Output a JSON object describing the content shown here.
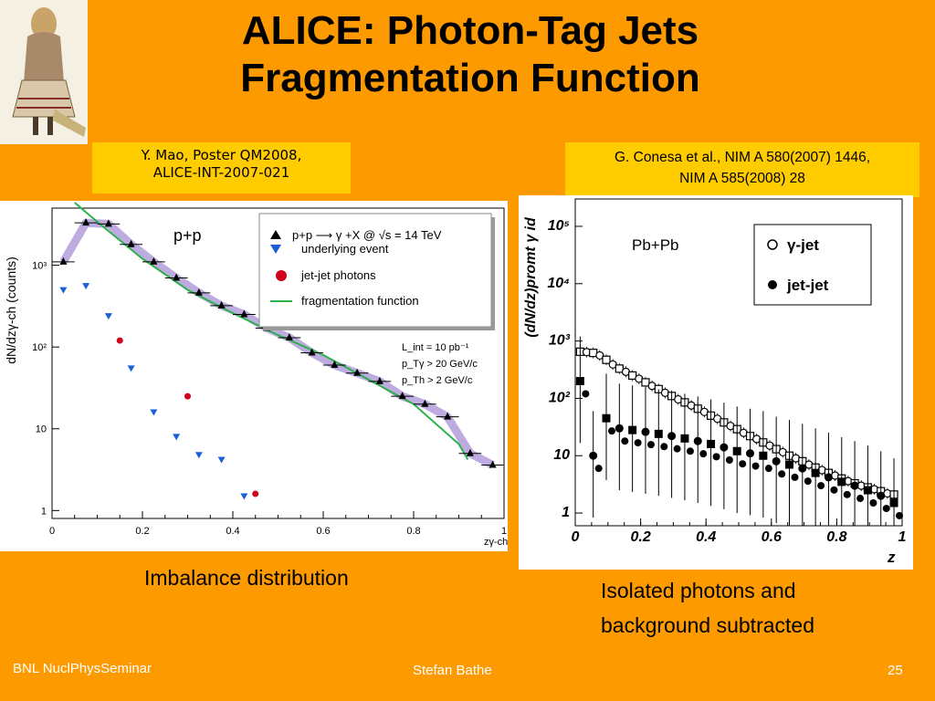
{
  "slide": {
    "title_line1": "ALICE: Photon-Tag Jets",
    "title_line2": "Fragmentation Function",
    "citation_left_line1": "Y. Mao, Poster QM2008,",
    "citation_left_line2": "ALICE-INT-2007-021",
    "citation_right_line1": "G. Conesa et al., NIM A 580(2007) 1446,",
    "citation_right_line2": "NIM A 585(2008) 28",
    "caption_left": "Imbalance distribution",
    "caption_right_line1": "Isolated photons and",
    "caption_right_line2": "background subtracted",
    "footer_left": "BNL NuclPhysSeminar",
    "footer_center": "Stefan Bathe",
    "page_number": "25",
    "background_color": "#fd9a00",
    "citation_color": "#ffcc00",
    "logo_icon": "figure-portrait-icon"
  },
  "chart_data": [
    {
      "type": "scatter",
      "panel_label": "p+p",
      "xlabel": "zγ-ch",
      "ylabel": "dN/dzγ-ch (counts)",
      "yscale": "log",
      "xlim": [
        0,
        1
      ],
      "ylim": [
        0.8,
        5000
      ],
      "x_ticks": [
        "0",
        "0.2",
        "0.4",
        "0.6",
        "0.8",
        "1"
      ],
      "y_ticks": [
        {
          "value": 1,
          "label": "1"
        },
        {
          "value": 10,
          "label": "10"
        },
        {
          "value": 100,
          "label": "10²"
        },
        {
          "value": 1000,
          "label": "10³"
        }
      ],
      "legend": [
        "p+p ⟶ γ +X @ √s = 14 TeV",
        "underlying event",
        "jet-jet photons",
        "fragmentation function"
      ],
      "annotations": [
        "L_int = 10 pb⁻¹",
        "p_Tγ > 20 GeV/c",
        "p_Th > 2 GeV/c"
      ],
      "series": [
        {
          "name": "p+p ⟶ γ +X @ √s = 14 TeV",
          "marker": "triangle-up",
          "color": "#000000",
          "x": [
            0.025,
            0.075,
            0.125,
            0.175,
            0.225,
            0.275,
            0.325,
            0.375,
            0.425,
            0.475,
            0.525,
            0.575,
            0.625,
            0.675,
            0.725,
            0.775,
            0.825,
            0.875,
            0.925,
            0.975
          ],
          "y": [
            1100,
            3300,
            3200,
            1800,
            1100,
            700,
            460,
            320,
            250,
            170,
            130,
            85,
            60,
            48,
            38,
            25,
            20,
            14,
            5,
            3.6
          ]
        },
        {
          "name": "underlying event",
          "marker": "triangle-down",
          "color": "#1a5fd8",
          "x": [
            0.025,
            0.075,
            0.125,
            0.175,
            0.225,
            0.275,
            0.325,
            0.375,
            0.425
          ],
          "y": [
            500,
            560,
            240,
            55,
            16,
            8,
            4.8,
            4.2,
            1.5
          ]
        },
        {
          "name": "jet-jet photons",
          "marker": "circle",
          "color": "#d0021b",
          "x": [
            0.15,
            0.3,
            0.45
          ],
          "y": [
            120,
            25,
            1.6
          ]
        },
        {
          "name": "fragmentation function",
          "marker": "line",
          "color": "#2bb24c",
          "x": [
            0.05,
            0.1,
            0.2,
            0.3,
            0.4,
            0.5,
            0.6,
            0.7,
            0.8,
            0.9,
            0.92
          ],
          "y": [
            7000,
            3400,
            1200,
            500,
            260,
            140,
            80,
            40,
            20,
            6.5,
            4.2
          ]
        }
      ]
    },
    {
      "type": "scatter",
      "panel_label": "Pb+Pb",
      "xlabel": "z",
      "ylabel": "(dN/dz)promt γ id",
      "yscale": "log",
      "xlim": [
        0,
        1
      ],
      "ylim": [
        0.6,
        300000
      ],
      "x_ticks": [
        "0",
        "0.2",
        "0.4",
        "0.6",
        "0.8",
        "1"
      ],
      "y_ticks": [
        {
          "value": 1,
          "label": "1"
        },
        {
          "value": 10,
          "label": "10"
        },
        {
          "value": 100,
          "label": "10²"
        },
        {
          "value": 1000,
          "label": "10³"
        },
        {
          "value": 10000,
          "label": "10⁴"
        },
        {
          "value": 100000,
          "label": "10⁵"
        }
      ],
      "legend": [
        "γ-jet",
        "jet-jet"
      ],
      "series": [
        {
          "name": "γ-jet",
          "marker": "open",
          "color": "#000000",
          "x": [
            0.015,
            0.035,
            0.055,
            0.075,
            0.095,
            0.115,
            0.135,
            0.155,
            0.175,
            0.195,
            0.215,
            0.235,
            0.255,
            0.275,
            0.295,
            0.315,
            0.335,
            0.355,
            0.375,
            0.395,
            0.415,
            0.435,
            0.455,
            0.475,
            0.495,
            0.515,
            0.535,
            0.555,
            0.575,
            0.595,
            0.615,
            0.635,
            0.655,
            0.675,
            0.695,
            0.715,
            0.735,
            0.755,
            0.775,
            0.795,
            0.815,
            0.835,
            0.855,
            0.875,
            0.895,
            0.915,
            0.935,
            0.955,
            0.975
          ],
          "y": [
            650,
            640,
            620,
            560,
            470,
            390,
            330,
            290,
            250,
            220,
            190,
            165,
            145,
            125,
            110,
            96,
            85,
            75,
            66,
            58,
            50,
            44,
            38,
            33,
            29,
            25,
            22,
            19.5,
            17,
            15,
            13,
            11.5,
            10,
            9,
            8,
            7,
            6.2,
            5.6,
            5,
            4.5,
            4,
            3.6,
            3.3,
            3,
            2.8,
            2.6,
            2.4,
            2.2,
            2.1
          ]
        },
        {
          "name": "jet-jet",
          "marker": "filled",
          "color": "#000000",
          "x": [
            0.015,
            0.055,
            0.095,
            0.135,
            0.175,
            0.215,
            0.255,
            0.295,
            0.335,
            0.375,
            0.415,
            0.455,
            0.495,
            0.535,
            0.575,
            0.615,
            0.655,
            0.695,
            0.735,
            0.775,
            0.815,
            0.855,
            0.895,
            0.935,
            0.975
          ],
          "y": [
            200,
            10,
            45,
            30,
            28,
            26,
            24,
            22,
            20,
            18,
            16,
            14,
            12,
            11,
            10,
            8,
            7,
            6,
            5,
            4.2,
            3.5,
            3,
            2.5,
            2,
            1.5
          ]
        }
      ]
    }
  ]
}
